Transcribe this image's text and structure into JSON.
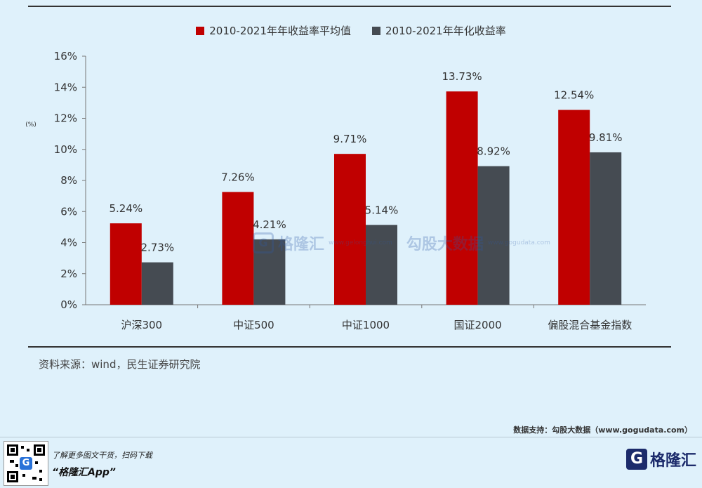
{
  "chart_data": {
    "type": "bar",
    "unit_label": "(%)",
    "categories": [
      "沪深300",
      "中证500",
      "中证1000",
      "国证2000",
      "偏股混合基金指数"
    ],
    "series": [
      {
        "name": "2010-2021年年收益率平均值",
        "color": "#c00000",
        "values": [
          5.24,
          7.26,
          9.71,
          13.73,
          12.54
        ],
        "labels": [
          "5.24%",
          "7.26%",
          "9.71%",
          "13.73%",
          "12.54%"
        ]
      },
      {
        "name": "2010-2021年年化收益率",
        "color": "#454b52",
        "values": [
          2.73,
          4.21,
          5.14,
          8.92,
          9.81
        ],
        "labels": [
          "2.73%",
          "4.21%",
          "5.14%",
          "8.92%",
          "9.81%"
        ]
      }
    ],
    "ylim": [
      0,
      16
    ],
    "yticks": [
      0,
      2,
      4,
      6,
      8,
      10,
      12,
      14,
      16
    ],
    "ytick_labels": [
      "0%",
      "2%",
      "4%",
      "6%",
      "8%",
      "10%",
      "12%",
      "14%",
      "16%"
    ],
    "grid": false,
    "legend_position": "top-center"
  },
  "source_text": "资料来源：wind，民生证券研究院",
  "watermark": {
    "logo": "G",
    "brand": "格隆汇",
    "url": "www.gelonghui.com",
    "data": "勾股大数据",
    "data_url": "www.gogudata.com"
  },
  "data_support": "数据支持：勾股大数据（www.gogudata.com）",
  "footer": {
    "qr_logo": "G",
    "line1": "了解更多图文干货，扫码下载",
    "line2": "“格隆汇App”",
    "brand_logo": "G",
    "brand_name": "格隆汇"
  }
}
